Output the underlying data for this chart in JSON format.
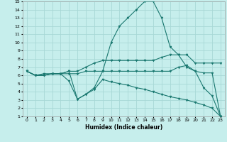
{
  "background_color": "#c6eeec",
  "grid_color": "#a8d8d6",
  "line_color": "#1a7870",
  "xlabel": "Humidex (Indice chaleur)",
  "xlim": [
    -0.5,
    23.5
  ],
  "ylim": [
    1,
    15
  ],
  "xticks": [
    0,
    1,
    2,
    3,
    4,
    5,
    6,
    7,
    8,
    9,
    10,
    11,
    12,
    13,
    14,
    15,
    16,
    17,
    18,
    19,
    20,
    21,
    22,
    23
  ],
  "yticks": [
    1,
    2,
    3,
    4,
    5,
    6,
    7,
    8,
    9,
    10,
    11,
    12,
    13,
    14,
    15
  ],
  "lines": [
    {
      "x": [
        0,
        1,
        2,
        3,
        4,
        5,
        6,
        7,
        8,
        9,
        10,
        11,
        12,
        13,
        14,
        15,
        16,
        17,
        18,
        19,
        20,
        21,
        22,
        23
      ],
      "y": [
        6.5,
        6.0,
        6.0,
        6.2,
        6.2,
        6.5,
        3.1,
        3.7,
        4.5,
        6.5,
        10.0,
        12.0,
        13.0,
        14.0,
        15.0,
        15.0,
        13.0,
        9.5,
        8.5,
        7.0,
        6.5,
        4.5,
        3.5,
        1.0
      ]
    },
    {
      "x": [
        0,
        1,
        2,
        3,
        4,
        5,
        6,
        7,
        8,
        9,
        10,
        11,
        12,
        13,
        14,
        15,
        16,
        17,
        18,
        19,
        20,
        21,
        22,
        23
      ],
      "y": [
        6.5,
        6.0,
        6.2,
        6.2,
        6.2,
        6.5,
        6.5,
        7.0,
        7.5,
        7.8,
        7.8,
        7.8,
        7.8,
        7.8,
        7.8,
        7.8,
        8.2,
        8.5,
        8.5,
        8.5,
        7.5,
        7.5,
        7.5,
        7.5
      ]
    },
    {
      "x": [
        0,
        1,
        2,
        3,
        4,
        5,
        6,
        7,
        8,
        9,
        10,
        11,
        12,
        13,
        14,
        15,
        16,
        17,
        18,
        19,
        20,
        21,
        22,
        23
      ],
      "y": [
        6.5,
        6.0,
        6.0,
        6.2,
        6.2,
        6.2,
        6.2,
        6.5,
        6.5,
        6.5,
        6.5,
        6.5,
        6.5,
        6.5,
        6.5,
        6.5,
        6.5,
        6.5,
        7.0,
        7.2,
        6.5,
        6.3,
        6.3,
        1.0
      ]
    },
    {
      "x": [
        0,
        1,
        2,
        3,
        4,
        5,
        6,
        7,
        8,
        9,
        10,
        11,
        12,
        13,
        14,
        15,
        16,
        17,
        18,
        19,
        20,
        21,
        22,
        23
      ],
      "y": [
        6.5,
        6.0,
        6.0,
        6.2,
        6.2,
        5.3,
        3.1,
        3.7,
        4.3,
        5.5,
        5.2,
        5.0,
        4.8,
        4.5,
        4.3,
        4.0,
        3.7,
        3.4,
        3.2,
        3.0,
        2.7,
        2.4,
        2.0,
        1.0
      ]
    }
  ]
}
